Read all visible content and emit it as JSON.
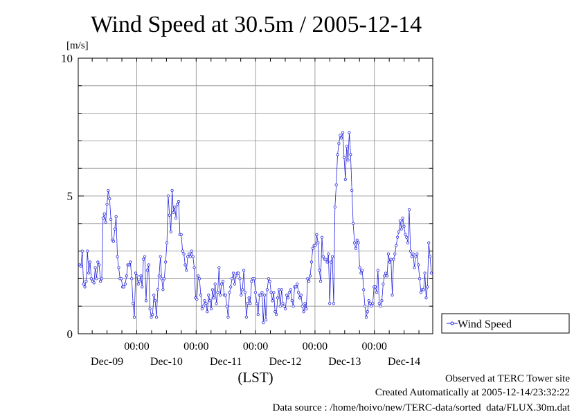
{
  "chart_data": {
    "type": "line",
    "title": "Wind Speed at 30.5m / 2005-12-14",
    "ylabel": "[m/s]",
    "xlabel": "(LST)",
    "ylim": [
      0,
      10
    ],
    "y_ticks": [
      0,
      5,
      10
    ],
    "y_tick_labels": [
      "0",
      "5",
      "10"
    ],
    "x_time_labels": [
      "00:00",
      "00:00",
      "00:00",
      "00:00",
      "00:00"
    ],
    "x_date_labels": [
      "Dec-09",
      "Dec-10",
      "Dec-11",
      "Dec-12",
      "Dec-13",
      "Dec-14"
    ],
    "grid": true,
    "legend_position": "right",
    "series": [
      {
        "name": "Wind Speed",
        "color": "#2222dd",
        "values": [
          2.5,
          2.45,
          3.0,
          1.8,
          1.7,
          1.9,
          3.0,
          2.2,
          2.6,
          2.0,
          1.9,
          1.85,
          2.4,
          2.0,
          2.6,
          2.5,
          1.9,
          2.0,
          4.2,
          4.35,
          4.05,
          4.7,
          5.2,
          4.9,
          4.15,
          3.4,
          3.35,
          3.8,
          4.25,
          2.8,
          2.4,
          2.0,
          2.0,
          1.7,
          1.7,
          1.8,
          2.1,
          2.5,
          2.5,
          2.6,
          2.0,
          1.1,
          0.6,
          2.2,
          2.1,
          1.8,
          1.9,
          2.1,
          1.7,
          2.7,
          2.8,
          1.2,
          2.3,
          2.5,
          0.9,
          0.6,
          0.7,
          1.4,
          1.2,
          0.6,
          1.6,
          2.1,
          2.8,
          2.0,
          1.6,
          2.0,
          2.6,
          3.3,
          5.0,
          4.3,
          3.7,
          5.2,
          4.4,
          4.6,
          4.2,
          4.7,
          4.8,
          3.6,
          3.6,
          3.0,
          2.9,
          2.5,
          2.3,
          2.8,
          2.9,
          2.8,
          3.0,
          2.8,
          2.4,
          1.3,
          1.25,
          2.1,
          2.0,
          1.4,
          0.9,
          1.0,
          1.2,
          1.1,
          0.8,
          1.4,
          1.2,
          0.9,
          1.6,
          1.3,
          1.8,
          1.1,
          1.5,
          2.4,
          1.4,
          1.8,
          1.9,
          1.4,
          1.4,
          1.0,
          0.6,
          1.5,
          1.7,
          2.0,
          2.2,
          1.8,
          2.1,
          2.2,
          2.2,
          2.0,
          1.4,
          1.6,
          2.3,
          1.5,
          0.6,
          1.1,
          1.3,
          1.1,
          1.9,
          2.0,
          2.0,
          1.5,
          1.1,
          0.7,
          1.4,
          1.4,
          1.5,
          0.4,
          1.4,
          0.5,
          1.6,
          2.0,
          1.9,
          1.5,
          1.2,
          1.5,
          0.8,
          0.7,
          1.3,
          1.6,
          1.0,
          1.6,
          1.1,
          1.0,
          0.9,
          1.4,
          1.3,
          1.5,
          1.6,
          1.2,
          1.0,
          1.7,
          1.7,
          1.8,
          1.5,
          1.3,
          1.4,
          1.0,
          0.8,
          1.1,
          0.9,
          2.0,
          1.9,
          2.1,
          2.6,
          3.1,
          3.2,
          3.2,
          3.6,
          3.3,
          2.3,
          1.9,
          3.5,
          2.8,
          2.7,
          2.7,
          2.6,
          2.9,
          1.1,
          2.6,
          2.8,
          1.1,
          4.6,
          5.4,
          6.5,
          6.9,
          7.2,
          7.1,
          7.3,
          6.4,
          5.6,
          6.8,
          6.3,
          7.3,
          6.5,
          5.2,
          4.0,
          3.3,
          3.1,
          3.4,
          3.3,
          2.4,
          2.2,
          2.3,
          1.6,
          1.0,
          0.6,
          0.8,
          1.2,
          1.1,
          1.0,
          1.1,
          1.7,
          1.7,
          1.5,
          2.3,
          1.1,
          1.0,
          1.2,
          1.8,
          2.1,
          2.2,
          2.1,
          2.9,
          2.6,
          2.7,
          1.4,
          2.7,
          2.9,
          3.2,
          3.5,
          3.7,
          4.1,
          3.8,
          4.2,
          3.9,
          3.6,
          3.5,
          3.3,
          4.5,
          3.0,
          2.8,
          2.9,
          2.4,
          2.8,
          2.9,
          2.5,
          2.0,
          1.5,
          1.6,
          1.6,
          2.2,
          1.3,
          1.7,
          3.3,
          2.8,
          2.2
        ]
      }
    ]
  },
  "footer": {
    "observed": "Observed at TERC Tower site",
    "created": "Created Automatically at 2005-12-14/23:32:22",
    "source": "Data source : /home/hoivo/new/TERC-data/sorted  data/FLUX.30m.dat"
  }
}
